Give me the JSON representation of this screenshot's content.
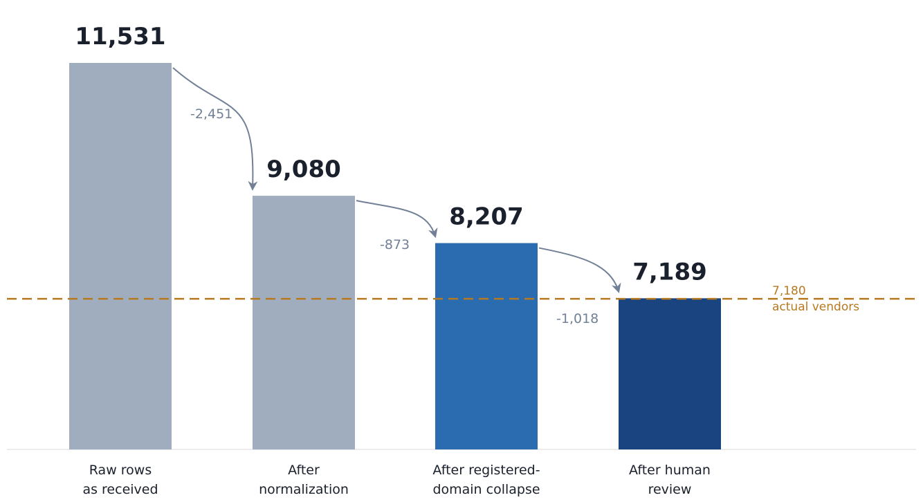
{
  "chart_data": {
    "type": "bar",
    "categories": [
      [
        "Raw rows",
        "as received"
      ],
      [
        "After",
        "normalization"
      ],
      [
        "After registered-",
        "domain collapse"
      ],
      [
        "After human",
        "review"
      ]
    ],
    "values": [
      11531,
      9080,
      8207,
      7189
    ],
    "value_labels": [
      "11,531",
      "9,080",
      "8,207",
      "7,189"
    ],
    "bar_colors": [
      "#a0adbe",
      "#a0adbe",
      "#2b6cb0",
      "#1a4480"
    ],
    "deltas": [
      {
        "from": 0,
        "to": 1,
        "label": "-2,451"
      },
      {
        "from": 1,
        "to": 2,
        "label": "-873"
      },
      {
        "from": 2,
        "to": 3,
        "label": "-1,018"
      }
    ],
    "reference_line": {
      "value": 7180,
      "label": [
        "7,180",
        "actual vendors"
      ],
      "color": "#b7791f",
      "style": "dashed"
    },
    "ylim": [
      4400,
      11800
    ],
    "title": "",
    "xlabel": "",
    "ylabel": "",
    "grid": false,
    "legend": "none"
  }
}
